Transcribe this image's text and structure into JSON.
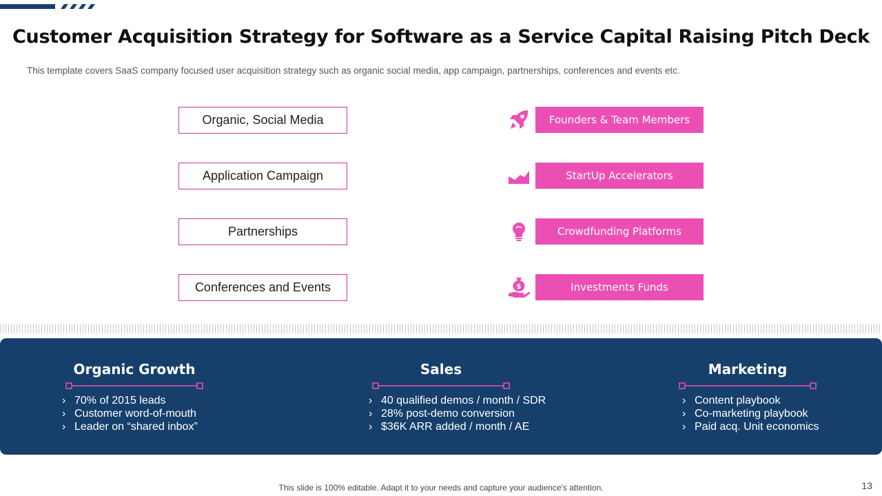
{
  "slide": {
    "title": "Customer Acquisition Strategy for Software as a Service Capital Raising Pitch Deck",
    "subtitle": "This template covers SaaS company focused user acquisition strategy such as organic social media, app campaign, partnerships, conferences and events etc.",
    "footer_note": "This slide is 100% editable. Adapt it to your needs and capture your audience's attention.",
    "page_number": "13"
  },
  "colors": {
    "accent_pink": "#ec4fb4",
    "border_pink": "#c23b9e",
    "navy": "#16406b"
  },
  "strategies": [
    {
      "label": "Organic, Social Media"
    },
    {
      "label": "Application Campaign"
    },
    {
      "label": "Partnerships"
    },
    {
      "label": "Conferences and Events"
    }
  ],
  "funding_sources": [
    {
      "label": "Founders & Team Members",
      "icon": "rocket-icon"
    },
    {
      "label": "StartUp Accelerators",
      "icon": "growth-chart-icon"
    },
    {
      "label": "Crowdfunding Platforms",
      "icon": "lightbulb-icon"
    },
    {
      "label": "Investments Funds",
      "icon": "money-bag-hand-icon"
    }
  ],
  "panel": {
    "columns": [
      {
        "title": "Organic Growth",
        "bullets": [
          "70% of 2015 leads",
          "Customer word-of-mouth",
          "Leader on “shared inbox”"
        ]
      },
      {
        "title": "Sales",
        "bullets": [
          "40 qualified demos / month  / SDR",
          "28% post-demo conversion",
          "$36K ARR added / month / AE"
        ]
      },
      {
        "title": "Marketing",
        "bullets": [
          "Content playbook",
          "Co-marketing playbook",
          "Paid acq. Unit economics"
        ]
      }
    ]
  }
}
